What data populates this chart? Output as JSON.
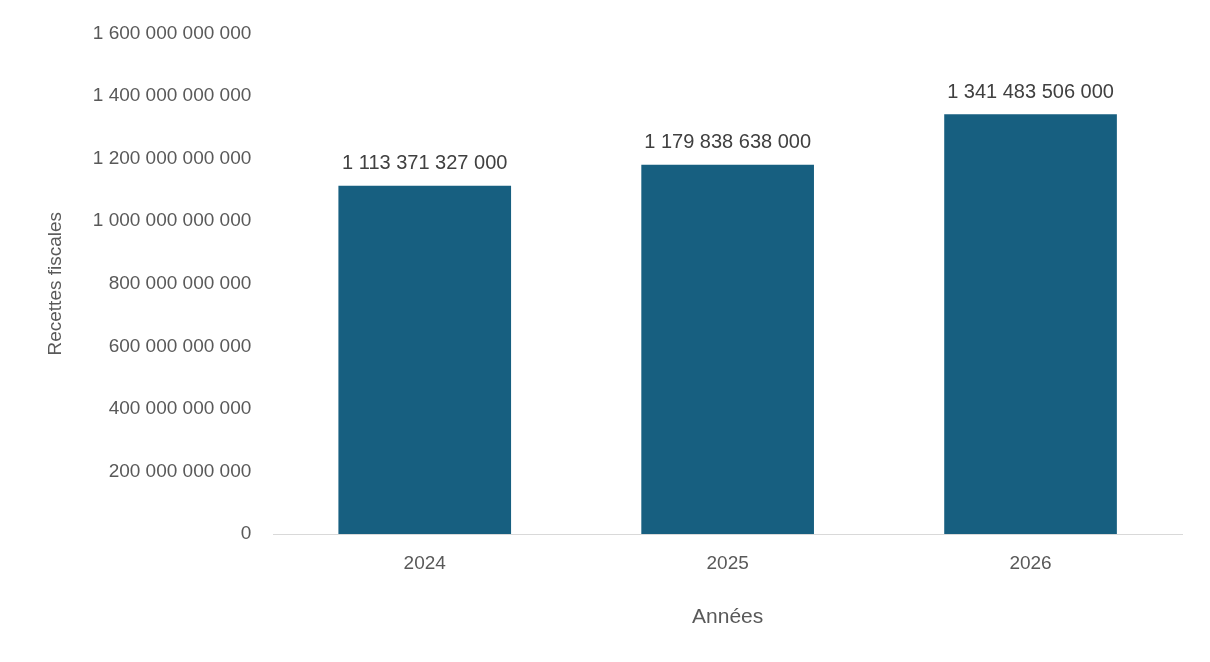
{
  "chart_data": {
    "type": "bar",
    "xlabel": "Années",
    "ylabel": "Recettes fiscales",
    "categories": [
      "2024",
      "2025",
      "2026"
    ],
    "values": [
      1113371327000,
      1179838638000,
      1341483506000
    ],
    "value_labels": [
      "1 113 371 327 000",
      "1 179 838 638 000",
      "1 341 483 506 000"
    ],
    "color": "#175f80",
    "ylim": [
      0,
      1600000000000
    ],
    "yticks": [
      0,
      {
        "value": 200000000000,
        "label": "200 000 000 000"
      },
      {
        "value": 400000000000,
        "label": "400 000 000 000"
      },
      {
        "value": 600000000000,
        "label": "600 000 000 000"
      },
      {
        "value": 800000000000,
        "label": "800 000 000 000"
      },
      {
        "value": 1000000000000,
        "label": "1 000 000 000 000"
      },
      {
        "value": 1200000000000,
        "label": "1 200 000 000 000"
      },
      {
        "value": 1400000000000,
        "label": "1 400 000 000 000"
      },
      {
        "value": 1600000000000,
        "label": "1 600 000 000 000"
      }
    ],
    "grid": false,
    "legend": false
  }
}
